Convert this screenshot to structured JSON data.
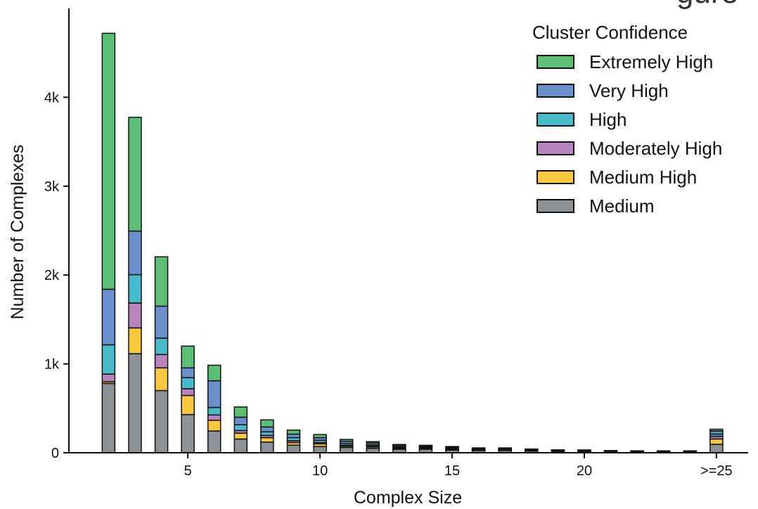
{
  "corner_text": "gure",
  "chart_data": {
    "type": "bar",
    "stacked": true,
    "title": "",
    "xlabel": "Complex Size",
    "ylabel": "Number of Complexes",
    "x": [
      2,
      3,
      4,
      5,
      6,
      7,
      8,
      9,
      10,
      11,
      12,
      13,
      14,
      15,
      16,
      17,
      18,
      19,
      20,
      21,
      22,
      23,
      24,
      25
    ],
    "xlim": [
      0.5,
      26.2
    ],
    "ylim": [
      0,
      5000
    ],
    "x_ticks": [
      {
        "value": 5,
        "label": "5"
      },
      {
        "value": 10,
        "label": "10"
      },
      {
        "value": 15,
        "label": "15"
      },
      {
        "value": 20,
        "label": "20"
      },
      {
        "value": 25,
        "label": ">=25"
      }
    ],
    "y_ticks": [
      {
        "value": 0,
        "label": "0"
      },
      {
        "value": 1000,
        "label": "1k"
      },
      {
        "value": 2000,
        "label": "2k"
      },
      {
        "value": 3000,
        "label": "3k"
      },
      {
        "value": 4000,
        "label": "4k"
      }
    ],
    "grid": false,
    "legend": {
      "title": "Cluster Confidence",
      "position": "top-right"
    },
    "series": [
      {
        "name": "Medium",
        "color": "#8c9196",
        "values": [
          780,
          1115,
          700,
          430,
          245,
          155,
          120,
          85,
          70,
          60,
          50,
          40,
          40,
          30,
          25,
          25,
          20,
          15,
          15,
          12,
          10,
          10,
          10,
          95
        ]
      },
      {
        "name": "Medium High",
        "color": "#f9c840",
        "values": [
          20,
          290,
          255,
          215,
          120,
          65,
          50,
          30,
          30,
          15,
          15,
          10,
          10,
          10,
          5,
          5,
          5,
          3,
          3,
          3,
          3,
          3,
          3,
          60
        ]
      },
      {
        "name": "Moderately High",
        "color": "#b784bd",
        "values": [
          85,
          280,
          150,
          75,
          60,
          30,
          25,
          20,
          15,
          10,
          10,
          8,
          6,
          5,
          5,
          5,
          3,
          3,
          2,
          2,
          2,
          2,
          2,
          30
        ]
      },
      {
        "name": "High",
        "color": "#4ab9c9",
        "values": [
          330,
          320,
          185,
          125,
          85,
          65,
          40,
          35,
          25,
          20,
          15,
          10,
          8,
          8,
          5,
          5,
          4,
          3,
          3,
          2,
          2,
          2,
          2,
          25
        ]
      },
      {
        "name": "Very High",
        "color": "#6a8fca",
        "values": [
          625,
          490,
          360,
          110,
          300,
          85,
          55,
          40,
          30,
          25,
          20,
          15,
          12,
          10,
          8,
          8,
          5,
          4,
          4,
          3,
          3,
          3,
          3,
          35
        ]
      },
      {
        "name": "Extremely High",
        "color": "#5cbf75",
        "values": [
          2880,
          1280,
          555,
          245,
          175,
          115,
          80,
          45,
          35,
          20,
          15,
          10,
          8,
          7,
          7,
          7,
          5,
          5,
          5,
          3,
          2,
          2,
          2,
          20
        ]
      }
    ]
  }
}
